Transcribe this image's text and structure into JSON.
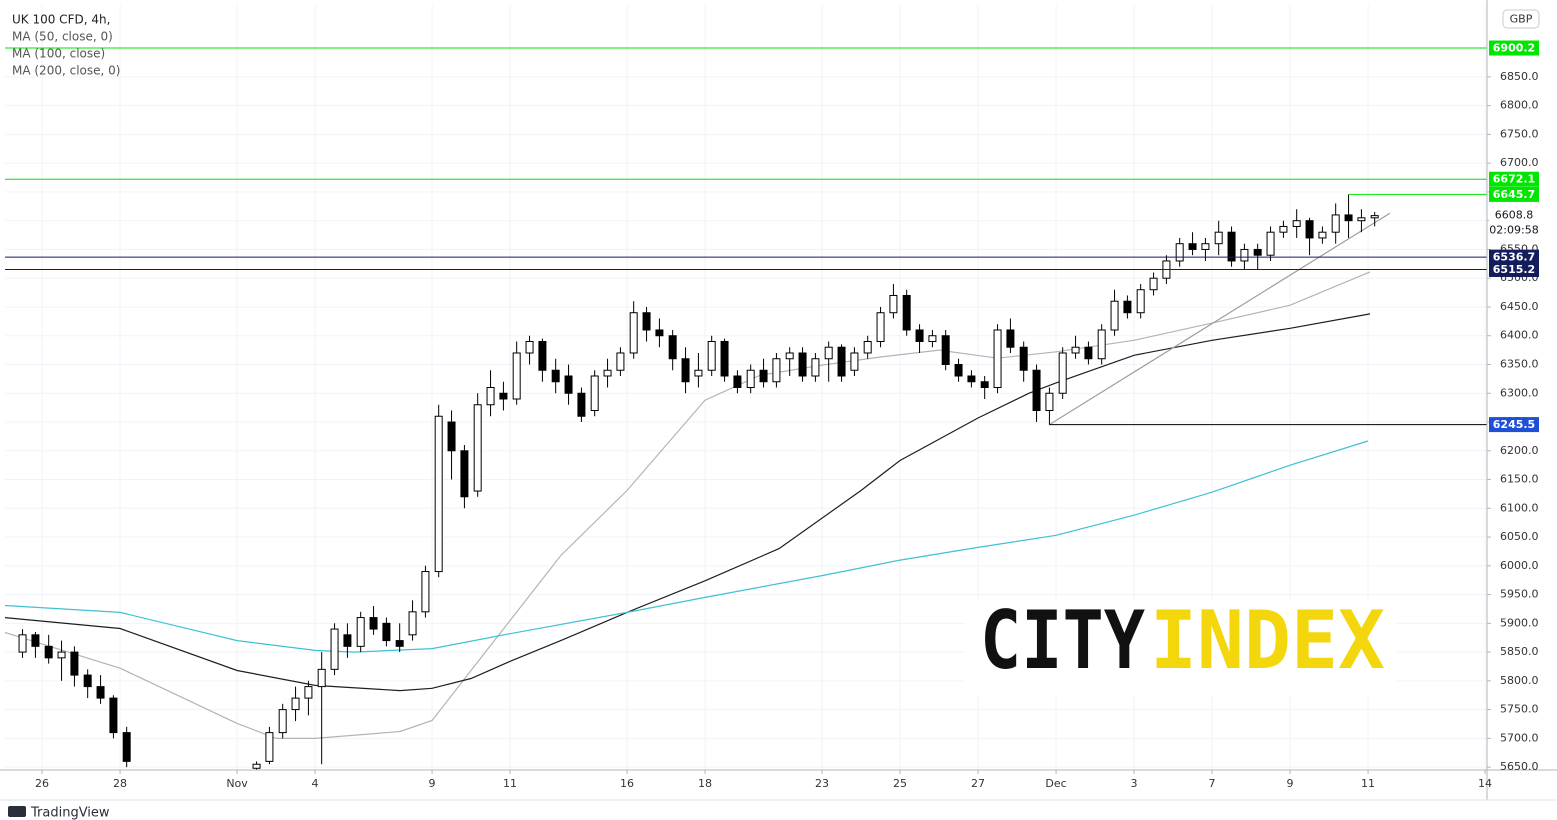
{
  "chart_data": {
    "type": "candlestick",
    "title": "UK 100 CFD, 4h,",
    "currency": "GBP",
    "countdown": "02:09:58",
    "last_price": 6608.8,
    "watermark": [
      "CITY",
      "INDEX"
    ],
    "brand": "TradingView",
    "xlim": [
      -0.95,
      37.05
    ],
    "ylim": [
      5645,
      6975
    ],
    "grid": true,
    "up_color": "#ffffff",
    "down_color": "#000000",
    "xticks": [
      {
        "value": 0,
        "label": "26"
      },
      {
        "value": 2,
        "label": "28"
      },
      {
        "value": 5,
        "label": "Nov"
      },
      {
        "value": 7,
        "label": "4"
      },
      {
        "value": 10,
        "label": "9"
      },
      {
        "value": 12,
        "label": "11"
      },
      {
        "value": 15,
        "label": "16"
      },
      {
        "value": 17,
        "label": "18"
      },
      {
        "value": 20,
        "label": "23"
      },
      {
        "value": 22,
        "label": "25"
      },
      {
        "value": 24,
        "label": "27"
      },
      {
        "value": 26,
        "label": "Dec"
      },
      {
        "value": 28,
        "label": "3"
      },
      {
        "value": 30,
        "label": "7"
      },
      {
        "value": 32,
        "label": "9"
      },
      {
        "value": 34,
        "label": "11"
      },
      {
        "value": 37,
        "label": "14"
      }
    ],
    "yticks": [
      {
        "value": 5650,
        "label": "5650.0"
      },
      {
        "value": 5700,
        "label": "5700.0"
      },
      {
        "value": 5750,
        "label": "5750.0"
      },
      {
        "value": 5800,
        "label": "5800.0"
      },
      {
        "value": 5850,
        "label": "5850.0"
      },
      {
        "value": 5900,
        "label": "5900.0"
      },
      {
        "value": 5950,
        "label": "5950.0"
      },
      {
        "value": 6000,
        "label": "6000.0"
      },
      {
        "value": 6050,
        "label": "6050.0"
      },
      {
        "value": 6100,
        "label": "6100.0"
      },
      {
        "value": 6150,
        "label": "6150.0"
      },
      {
        "value": 6200,
        "label": "6200.0"
      },
      {
        "value": 6250,
        "label": "6250.0"
      },
      {
        "value": 6300,
        "label": "6300.0"
      },
      {
        "value": 6350,
        "label": "6350.0"
      },
      {
        "value": 6400,
        "label": "6400.0"
      },
      {
        "value": 6450,
        "label": "6450.0"
      },
      {
        "value": 6500,
        "label": "6500.0"
      },
      {
        "value": 6550,
        "label": "6550.0"
      },
      {
        "value": 6600,
        "label": "6600.0"
      },
      {
        "value": 6650,
        "label": "6650.0"
      },
      {
        "value": 6700,
        "label": "6700.0"
      },
      {
        "value": 6750,
        "label": "6750.0"
      },
      {
        "value": 6800,
        "label": "6800.0"
      },
      {
        "value": 6850,
        "label": "6850.0"
      }
    ],
    "x": [
      -0.5,
      -0.17,
      0.17,
      0.5,
      0.83,
      1.17,
      1.5,
      1.83,
      2.17,
      5.5,
      5.83,
      6.17,
      6.5,
      6.83,
      7.17,
      7.5,
      7.83,
      8.17,
      8.5,
      8.83,
      9.17,
      9.5,
      9.83,
      10.17,
      10.5,
      10.83,
      11.17,
      11.5,
      11.83,
      12.17,
      12.5,
      12.83,
      13.17,
      13.5,
      13.83,
      14.17,
      14.5,
      14.83,
      15.17,
      15.5,
      15.83,
      16.17,
      16.5,
      16.83,
      17.17,
      17.5,
      17.83,
      18.17,
      18.5,
      18.83,
      19.17,
      19.5,
      19.83,
      20.17,
      20.5,
      20.83,
      21.17,
      21.5,
      21.83,
      22.17,
      22.5,
      22.83,
      23.17,
      23.5,
      23.83,
      24.17,
      24.5,
      24.83,
      25.17,
      25.5,
      25.83,
      26.17,
      26.5,
      26.83,
      27.17,
      27.5,
      27.83,
      28.17,
      28.5,
      28.83,
      29.17,
      29.5,
      29.83,
      30.17,
      30.5,
      30.83,
      31.17,
      31.5,
      31.83,
      32.17,
      32.5,
      32.83,
      33.17,
      33.5,
      33.83,
      34.17
    ],
    "open": [
      5850,
      5880,
      5860,
      5840,
      5850,
      5810,
      5790,
      5770,
      5710,
      5648,
      5660,
      5710,
      5750,
      5770,
      5790,
      5820,
      5880,
      5860,
      5910,
      5900,
      5870,
      5880,
      5920,
      5990,
      6250,
      6200,
      6130,
      6280,
      6300,
      6290,
      6370,
      6390,
      6340,
      6330,
      6300,
      6270,
      6330,
      6340,
      6370,
      6440,
      6410,
      6400,
      6360,
      6330,
      6340,
      6390,
      6330,
      6310,
      6340,
      6320,
      6360,
      6370,
      6330,
      6360,
      6380,
      6340,
      6370,
      6390,
      6440,
      6470,
      6410,
      6390,
      6400,
      6350,
      6330,
      6320,
      6310,
      6410,
      6380,
      6340,
      6270,
      6300,
      6370,
      6380,
      6360,
      6410,
      6460,
      6440,
      6480,
      6500,
      6530,
      6560,
      6550,
      6560,
      6580,
      6530,
      6550,
      6540,
      6580,
      6590,
      6600,
      6570,
      6580,
      6610,
      6600,
      6605
    ],
    "high": [
      5890,
      5885,
      5880,
      5870,
      5860,
      5820,
      5810,
      5775,
      5720,
      5660,
      5720,
      5760,
      5790,
      5800,
      5850,
      5900,
      5900,
      5920,
      5930,
      5910,
      5900,
      5940,
      6000,
      6280,
      6270,
      6210,
      6300,
      6340,
      6320,
      6390,
      6400,
      6395,
      6360,
      6350,
      6310,
      6340,
      6360,
      6380,
      6460,
      6450,
      6430,
      6410,
      6380,
      6370,
      6400,
      6395,
      6340,
      6350,
      6360,
      6370,
      6380,
      6380,
      6370,
      6390,
      6385,
      6380,
      6400,
      6450,
      6490,
      6480,
      6420,
      6410,
      6410,
      6360,
      6340,
      6330,
      6420,
      6430,
      6390,
      6350,
      6310,
      6380,
      6400,
      6390,
      6420,
      6480,
      6470,
      6490,
      6510,
      6540,
      6570,
      6580,
      6570,
      6600,
      6590,
      6560,
      6560,
      6590,
      6600,
      6620,
      6605,
      6590,
      6630,
      6645.7,
      6620,
      6615
    ],
    "low": [
      5840,
      5840,
      5830,
      5800,
      5790,
      5770,
      5760,
      5700,
      5650,
      5645,
      5655,
      5700,
      5730,
      5740,
      5655,
      5810,
      5840,
      5850,
      5880,
      5860,
      5850,
      5870,
      5910,
      5980,
      6150,
      6100,
      6120,
      6260,
      6270,
      6280,
      6350,
      6320,
      6300,
      6280,
      6250,
      6260,
      6310,
      6330,
      6360,
      6390,
      6380,
      6340,
      6300,
      6310,
      6330,
      6320,
      6300,
      6300,
      6310,
      6310,
      6330,
      6320,
      6320,
      6320,
      6320,
      6330,
      6360,
      6380,
      6430,
      6400,
      6370,
      6380,
      6340,
      6320,
      6310,
      6290,
      6300,
      6370,
      6320,
      6250,
      6245.5,
      6290,
      6360,
      6350,
      6350,
      6400,
      6430,
      6430,
      6470,
      6490,
      6520,
      6540,
      6530,
      6540,
      6520,
      6515,
      6515,
      6530,
      6570,
      6570,
      6540,
      6560,
      6560,
      6570,
      6580,
      6590
    ],
    "close": [
      5880,
      5860,
      5840,
      5850,
      5810,
      5790,
      5770,
      5710,
      5660,
      5655,
      5710,
      5750,
      5770,
      5790,
      5820,
      5890,
      5860,
      5910,
      5890,
      5870,
      5860,
      5920,
      5990,
      6260,
      6200,
      6120,
      6280,
      6310,
      6290,
      6370,
      6390,
      6340,
      6320,
      6300,
      6260,
      6330,
      6340,
      6370,
      6440,
      6410,
      6400,
      6360,
      6320,
      6340,
      6390,
      6330,
      6310,
      6340,
      6320,
      6360,
      6370,
      6330,
      6360,
      6380,
      6330,
      6370,
      6390,
      6440,
      6470,
      6410,
      6390,
      6400,
      6350,
      6330,
      6320,
      6310,
      6410,
      6380,
      6340,
      6270,
      6300,
      6370,
      6380,
      6360,
      6410,
      6460,
      6440,
      6480,
      6500,
      6530,
      6560,
      6550,
      6560,
      6580,
      6530,
      6550,
      6540,
      6580,
      6590,
      6600,
      6570,
      6580,
      6610,
      6600,
      6605,
      6608.8
    ],
    "lines": [
      {
        "name": "MA (50, close, 0)",
        "color": "#b4b4b4",
        "x": [
          -0.95,
          2,
          5,
          6,
          7,
          9.18,
          10,
          11,
          12,
          13.3,
          15,
          17,
          18.4,
          20,
          21.5,
          23,
          24.5,
          26,
          28,
          30,
          32,
          34.05
        ],
        "values": [
          5884,
          5822,
          5726,
          5700,
          5700,
          5712,
          5731,
          5818,
          5905,
          6018,
          6131,
          6288,
          6331,
          6349,
          6363,
          6375,
          6361,
          6372,
          6392,
          6422,
          6453,
          6511
        ]
      },
      {
        "name": "MA (100, close)",
        "color": "#1e1e1e",
        "x": [
          -0.95,
          2,
          5,
          7,
          9.18,
          10,
          11,
          12,
          13.3,
          15,
          17,
          18.9,
          21,
          22,
          24,
          25.3,
          26,
          28,
          30,
          32,
          34.05
        ],
        "values": [
          5910,
          5891,
          5818,
          5792,
          5783,
          5787,
          5804,
          5834,
          5870,
          5919,
          5974,
          6030,
          6131,
          6183,
          6257,
          6300,
          6318,
          6366,
          6392,
          6413,
          6438
        ]
      },
      {
        "name": "MA (200, close, 0)",
        "color": "#3ec1d3",
        "x": [
          -0.95,
          2,
          5,
          7,
          8,
          10,
          12,
          15,
          17,
          20,
          22,
          24,
          26,
          28,
          30,
          32,
          34
        ],
        "values": [
          5931,
          5919,
          5870,
          5853,
          5850,
          5856,
          5882,
          5919,
          5945,
          5983,
          6010,
          6032,
          6053,
          6088,
          6128,
          6175,
          6217
        ]
      }
    ],
    "trendline": {
      "color": "#9e9e9e",
      "x": [
        25.83,
        34.56
      ],
      "values": [
        6245.5,
        6613
      ]
    },
    "levels": [
      {
        "value": 6900.2,
        "color": "#00e600"
      },
      {
        "value": 6672.1,
        "color": "#00e600"
      },
      {
        "value": 6645.7,
        "color": "#00e600",
        "from": 33.5
      },
      {
        "value": 6536.7,
        "color": "#131d5c"
      },
      {
        "value": 6515.2,
        "color": "#131d5c"
      },
      {
        "value": 6245.5,
        "color": "#1f4fd6",
        "line_color": "#000000",
        "from": 25.83
      }
    ]
  }
}
